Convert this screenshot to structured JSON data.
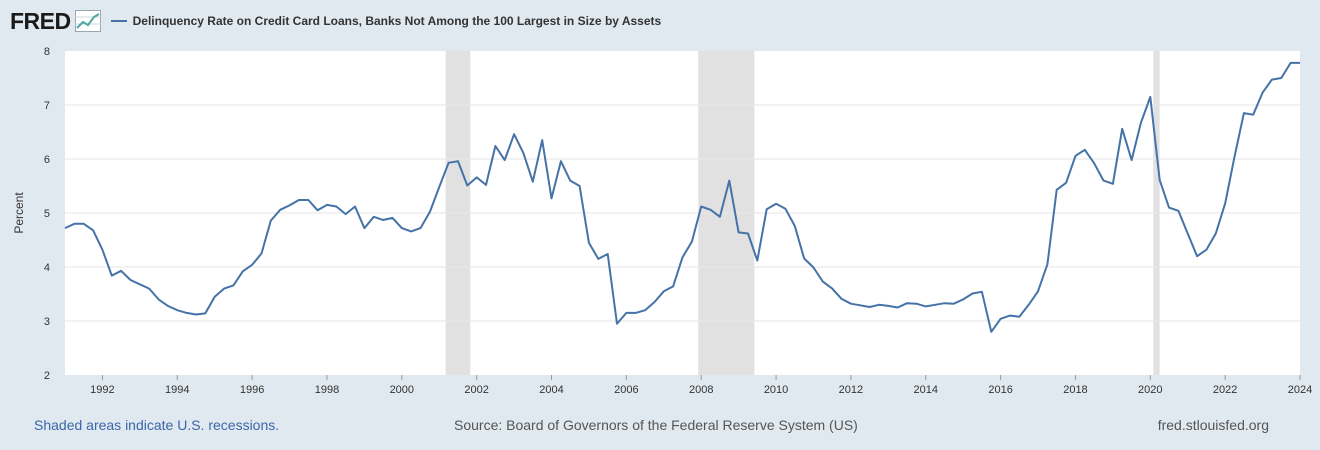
{
  "header": {
    "logo_text": "FRED",
    "logo_icon": "line-graph-icon",
    "series_color": "#4572a7"
  },
  "footer": {
    "recession_note": "Shaded areas indicate U.S. recessions.",
    "source": "Source: Board of Governors of the Federal Reserve System (US)",
    "site": "fred.stlouisfed.org"
  },
  "chart_data": {
    "type": "line",
    "title": "Delinquency Rate on Credit Card Loans, Banks Not Among the 100 Largest in Size by Assets",
    "xlabel": "",
    "ylabel": "Percent",
    "xlim": [
      1991.0,
      2024.0
    ],
    "ylim": [
      2,
      8
    ],
    "yticks": [
      2,
      3,
      4,
      5,
      6,
      7,
      8
    ],
    "xticks": [
      1992,
      1994,
      1996,
      1998,
      2000,
      2002,
      2004,
      2006,
      2008,
      2010,
      2012,
      2014,
      2016,
      2018,
      2020,
      2022,
      2024
    ],
    "grid": true,
    "legend": "top-left",
    "recessions": [
      [
        2001.17,
        2001.83
      ],
      [
        2007.92,
        2009.42
      ],
      [
        2020.08,
        2020.25
      ]
    ],
    "series": [
      {
        "name": "Delinquency Rate on Credit Card Loans, Banks Not Among the 100 Largest in Size by Assets",
        "color": "#4572a7",
        "x": [
          1991.0,
          1991.25,
          1991.5,
          1991.75,
          1992.0,
          1992.25,
          1992.5,
          1992.75,
          1993.0,
          1993.25,
          1993.5,
          1993.75,
          1994.0,
          1994.25,
          1994.5,
          1994.75,
          1995.0,
          1995.25,
          1995.5,
          1995.75,
          1996.0,
          1996.25,
          1996.5,
          1996.75,
          1997.0,
          1997.25,
          1997.5,
          1997.75,
          1998.0,
          1998.25,
          1998.5,
          1998.75,
          1999.0,
          1999.25,
          1999.5,
          1999.75,
          2000.0,
          2000.25,
          2000.5,
          2000.75,
          2001.0,
          2001.25,
          2001.5,
          2001.75,
          2002.0,
          2002.25,
          2002.5,
          2002.75,
          2003.0,
          2003.25,
          2003.5,
          2003.75,
          2004.0,
          2004.25,
          2004.5,
          2004.75,
          2005.0,
          2005.25,
          2005.5,
          2005.75,
          2006.0,
          2006.25,
          2006.5,
          2006.75,
          2007.0,
          2007.25,
          2007.5,
          2007.75,
          2008.0,
          2008.25,
          2008.5,
          2008.75,
          2009.0,
          2009.25,
          2009.5,
          2009.75,
          2010.0,
          2010.25,
          2010.5,
          2010.75,
          2011.0,
          2011.25,
          2011.5,
          2011.75,
          2012.0,
          2012.25,
          2012.5,
          2012.75,
          2013.0,
          2013.25,
          2013.5,
          2013.75,
          2014.0,
          2014.25,
          2014.5,
          2014.75,
          2015.0,
          2015.25,
          2015.5,
          2015.75,
          2016.0,
          2016.25,
          2016.5,
          2016.75,
          2017.0,
          2017.25,
          2017.5,
          2017.75,
          2018.0,
          2018.25,
          2018.5,
          2018.75,
          2019.0,
          2019.25,
          2019.5,
          2019.75,
          2020.0,
          2020.25,
          2020.5,
          2020.75,
          2021.0,
          2021.25,
          2021.5,
          2021.75,
          2022.0,
          2022.25,
          2022.5,
          2022.75,
          2023.0,
          2023.25,
          2023.5,
          2023.75,
          2024.0
        ],
        "values": [
          4.72,
          4.8,
          4.8,
          4.68,
          4.32,
          3.84,
          3.93,
          3.76,
          3.68,
          3.6,
          3.4,
          3.28,
          3.2,
          3.15,
          3.12,
          3.14,
          3.45,
          3.6,
          3.66,
          3.92,
          4.04,
          4.25,
          4.86,
          5.06,
          5.14,
          5.24,
          5.24,
          5.05,
          5.15,
          5.12,
          4.98,
          5.12,
          4.72,
          4.93,
          4.87,
          4.91,
          4.72,
          4.66,
          4.72,
          5.02,
          5.48,
          5.93,
          5.96,
          5.51,
          5.66,
          5.52,
          6.24,
          5.98,
          6.46,
          6.11,
          5.58,
          6.35,
          5.27,
          5.96,
          5.6,
          5.5,
          4.45,
          4.15,
          4.24,
          2.95,
          3.15,
          3.15,
          3.2,
          3.35,
          3.55,
          3.64,
          4.18,
          4.47,
          5.12,
          5.06,
          4.93,
          5.6,
          4.64,
          4.62,
          4.12,
          5.07,
          5.17,
          5.08,
          4.76,
          4.16,
          3.99,
          3.73,
          3.6,
          3.41,
          3.32,
          3.29,
          3.26,
          3.3,
          3.28,
          3.25,
          3.33,
          3.32,
          3.27,
          3.3,
          3.33,
          3.32,
          3.4,
          3.51,
          3.54,
          2.8,
          3.04,
          3.1,
          3.08,
          3.3,
          3.55,
          4.05,
          5.43,
          5.56,
          6.06,
          6.17,
          5.92,
          5.6,
          5.54,
          6.56,
          5.98,
          6.67,
          7.15,
          5.61,
          5.1,
          5.04,
          4.62,
          4.2,
          4.32,
          4.62,
          5.18,
          6.04,
          6.85,
          6.82,
          7.23,
          7.47,
          7.5,
          7.78,
          7.78
        ]
      }
    ]
  }
}
